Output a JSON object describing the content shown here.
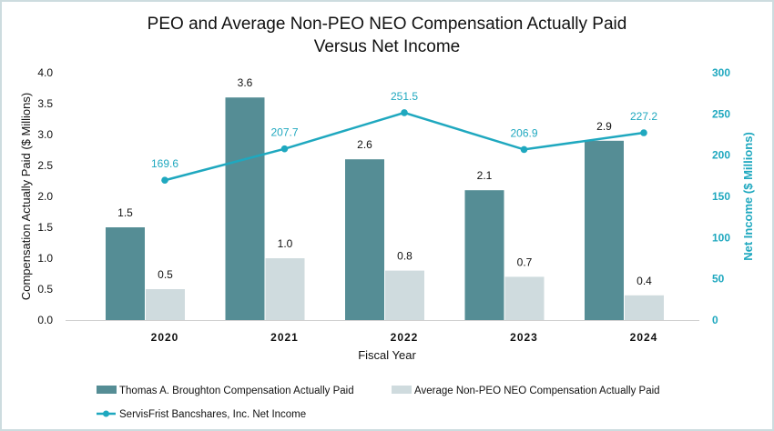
{
  "chart_data": {
    "type": "bar+line",
    "title_line1": "PEO and Average Non-PEO NEO Compensation Actually Paid",
    "title_line2": "Versus Net Income",
    "xlabel": "Fiscal Year",
    "ylabel_left": "Compensation Actually Paid ($ Millions)",
    "ylabel_right": "Net Income ($ Millions)",
    "ylim_left": [
      0,
      4.0
    ],
    "ylim_right": [
      0,
      300
    ],
    "yticks_left": [
      "0.0",
      "0.5",
      "1.0",
      "1.5",
      "2.0",
      "2.5",
      "3.0",
      "3.5",
      "4.0"
    ],
    "yticks_right": [
      "0",
      "50",
      "100",
      "150",
      "200",
      "250",
      "300"
    ],
    "categories": [
      "2020",
      "2021",
      "2022",
      "2023",
      "2024"
    ],
    "grid": false,
    "legend_placement": "bottom",
    "series": [
      {
        "name": "Thomas A. Broughton Compensation Actually Paid",
        "type": "bar",
        "axis": "left",
        "color": "#558d95",
        "values": [
          1.5,
          3.6,
          2.6,
          2.1,
          2.9
        ],
        "labels": [
          "1.5",
          "3.6",
          "2.6",
          "2.1",
          "2.9"
        ]
      },
      {
        "name": "Average Non-PEO NEO Compensation Actually Paid",
        "type": "bar",
        "axis": "left",
        "color": "#cfdbde",
        "values": [
          0.5,
          1.0,
          0.8,
          0.7,
          0.4
        ],
        "labels": [
          "0.5",
          "1.0",
          "0.8",
          "0.7",
          "0.4"
        ]
      },
      {
        "name": "ServisFrist Bancshares, Inc. Net Income",
        "type": "line",
        "axis": "right",
        "color": "#1fa8bf",
        "values": [
          169.6,
          207.7,
          251.5,
          206.9,
          227.2
        ],
        "labels": [
          "169.6",
          "207.7",
          "251.5",
          "206.9",
          "227.2"
        ]
      }
    ]
  }
}
